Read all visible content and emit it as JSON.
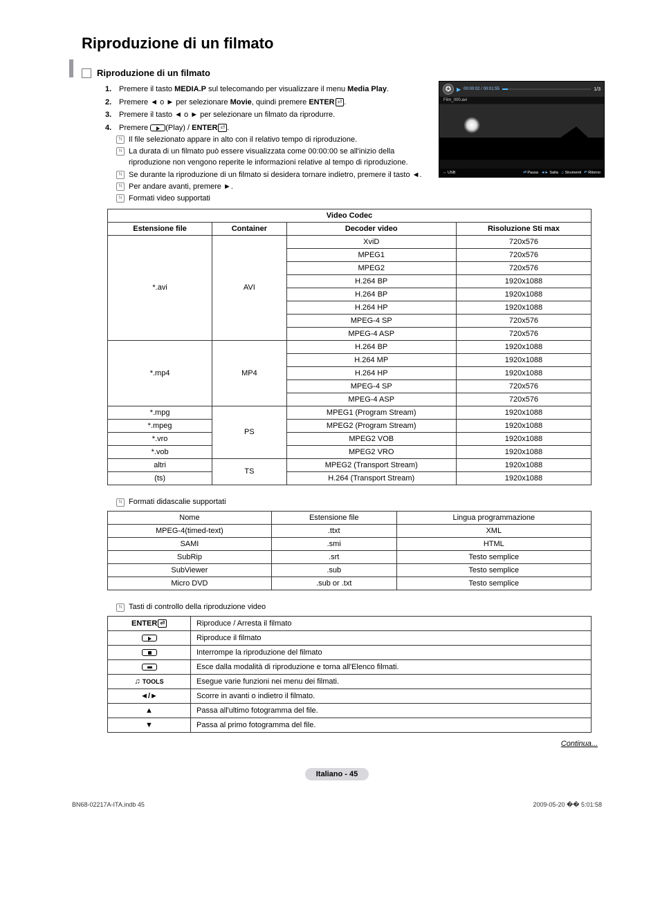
{
  "title": "Riproduzione di un filmato",
  "subheading": "Riproduzione di un filmato",
  "steps": [
    {
      "n": "1.",
      "t": "Premere il tasto <b>MEDIA.P</b> sul telecomando per visualizzare il menu <b>Media Play</b>."
    },
    {
      "n": "2.",
      "t": "Premere ◄ o ► per selezionare <b>Movie</b>, quindi premere <b>ENTER</b><span class='enter-icon'>⏎</span>."
    },
    {
      "n": "3.",
      "t": "Premere il tasto ◄ o ► per selezionare un filmato da riprodurre."
    },
    {
      "n": "4.",
      "t": "Premere <span class='play-rect'></span>(Play) / <b>ENTER</b><span class='enter-icon'>⏎</span>."
    }
  ],
  "notes1": [
    "Il file selezionato appare in alto con il relativo tempo di riproduzione.",
    "La durata di un filmato può essere visualizzata come 00:00:00 se all'inizio della riproduzione non vengono reperite le informazioni relative al tempo di riproduzione."
  ],
  "notes1b": [
    "Se durante la riproduzione di un filmato si desidera tornare indietro, premere il tasto ◄.",
    "Per andare avanti, premere ►.",
    "Formati video supportati"
  ],
  "preview": {
    "time": "00:00:02 / 00:01:55",
    "count": "1/3",
    "filename": "Film_000.avi",
    "usb": "USB",
    "controls": [
      {
        "k": "⏎",
        "l": "Pausa"
      },
      {
        "k": "◄►",
        "l": "Salta"
      },
      {
        "k": "♫",
        "l": "Strumenti"
      },
      {
        "k": "↶",
        "l": "Ritorno"
      }
    ]
  },
  "codec_table": {
    "header_main": "Video Codec",
    "headers": [
      "Estensione file",
      "Container",
      "Decoder video",
      "Risoluzione Sti max"
    ],
    "groups": [
      {
        "ext": "*.avi",
        "container": "AVI",
        "rows": [
          [
            "XviD",
            "720x576"
          ],
          [
            "MPEG1",
            "720x576"
          ],
          [
            "MPEG2",
            "720x576"
          ],
          [
            "H.264 BP",
            "1920x1088"
          ],
          [
            "H.264 BP",
            "1920x1088"
          ],
          [
            "H.264 HP",
            "1920x1088"
          ],
          [
            "MPEG-4 SP",
            "720x576"
          ],
          [
            "MPEG-4 ASP",
            "720x576"
          ]
        ]
      },
      {
        "ext": "*.mp4",
        "container": "MP4",
        "rows": [
          [
            "H.264 BP",
            "1920x1088"
          ],
          [
            "H.264 MP",
            "1920x1088"
          ],
          [
            "H.264 HP",
            "1920x1088"
          ],
          [
            "MPEG-4 SP",
            "720x576"
          ],
          [
            "MPEG-4 ASP",
            "720x576"
          ]
        ]
      },
      {
        "ext_rows": [
          "*.mpg",
          "*.mpeg",
          "*.vro",
          "*.vob"
        ],
        "container": "PS",
        "rows": [
          [
            "MPEG1 (Program Stream)",
            "1920x1088"
          ],
          [
            "MPEG2 (Program Stream)",
            "1920x1088"
          ],
          [
            "MPEG2 VOB",
            "1920x1088"
          ],
          [
            "MPEG2 VRO",
            "1920x1088"
          ]
        ]
      },
      {
        "ext_rows": [
          "altri",
          "(ts)"
        ],
        "container": "TS",
        "rows": [
          [
            "MPEG2 (Transport Stream)",
            "1920x1088"
          ],
          [
            "H.264 (Transport Stream)",
            "1920x1088"
          ]
        ]
      }
    ]
  },
  "subtitle_note": "Formati didascalie supportati",
  "subtitle_table": {
    "headers": [
      "Nome",
      "Estensione file",
      "Lingua programmazione"
    ],
    "rows": [
      [
        "MPEG-4(timed-text)",
        ".ttxt",
        "XML"
      ],
      [
        "SAMI",
        ".smi",
        "HTML"
      ],
      [
        "SubRip",
        ".srt",
        "Testo semplice"
      ],
      [
        "SubViewer",
        ".sub",
        "Testo semplice"
      ],
      [
        "Micro DVD",
        ".sub or .txt",
        "Testo semplice"
      ]
    ]
  },
  "controls_note": "Tasti di controllo della riproduzione video",
  "controls_table": [
    {
      "key_html": "<b>ENTER</b><span class='enter-icon'>⏎</span>",
      "desc": "Riproduce / Arresta il filmato"
    },
    {
      "key_html": "<span class='play-rect'></span>",
      "desc": "Riproduce il filmato"
    },
    {
      "key_html": "<span class='stop-rect'></span>",
      "desc": "Interrompe la riproduzione del filmato"
    },
    {
      "key_html": "<span class='exit-rect'></span>",
      "desc": "Esce dalla modalità di riproduzione e torna all'Elenco filmati."
    },
    {
      "key_html": "♫ <span class='tools-lbl'>TOOLS</span>",
      "desc": "Esegue varie funzioni nei menu dei filmati."
    },
    {
      "key_html": "◄/►",
      "desc": "Scorre in avanti o indietro il filmato."
    },
    {
      "key_html": "▲",
      "desc": "Passa all'ultimo fotogramma del file."
    },
    {
      "key_html": "▼",
      "desc": "Passa al primo fotogramma del file."
    }
  ],
  "continua": "Continua...",
  "page_label": "Italiano - 45",
  "footer_left": "BN68-02217A-ITA.indb   45",
  "footer_right": "2009-05-20   �� 5:01:58"
}
